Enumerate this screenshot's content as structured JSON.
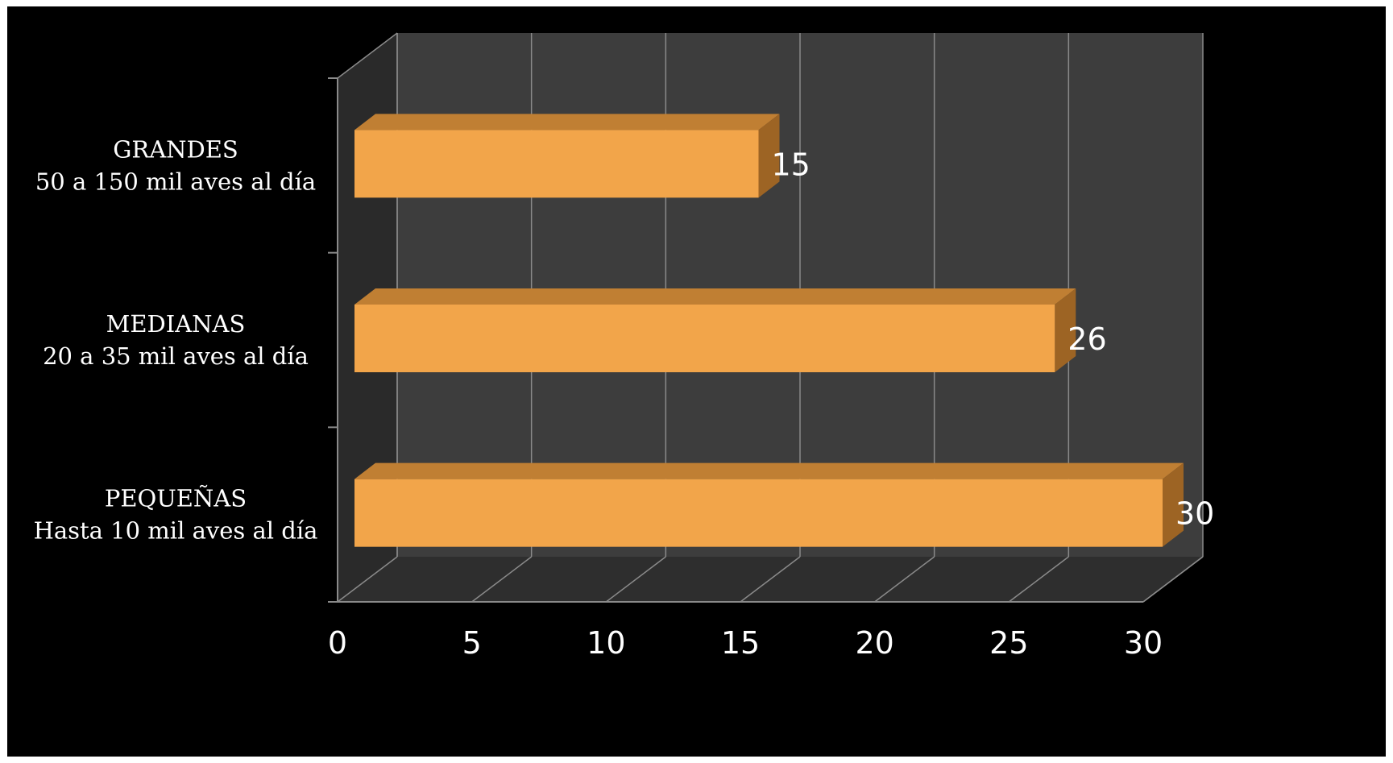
{
  "chart_data": {
    "type": "bar",
    "orientation": "horizontal",
    "style": "3d",
    "categories": [
      [
        "GRANDES",
        "50 a 150 mil aves al día"
      ],
      [
        "MEDIANAS",
        "20 a 35 mil aves al día"
      ],
      [
        "PEQUEÑAS",
        "Hasta 10 mil aves al día"
      ]
    ],
    "values": [
      15,
      26,
      30
    ],
    "data_labels": [
      "15",
      "26",
      "30"
    ],
    "xlim": [
      0,
      30
    ],
    "xticks": [
      "0",
      "5",
      "10",
      "15",
      "20",
      "25",
      "30"
    ],
    "grid": true,
    "legend": "none",
    "colors": {
      "background": "#000000",
      "wall": "#3d3d3d",
      "floor": "#2e2e2e",
      "side_wall": "#2a2a2a",
      "gridline": "#8a8a8a",
      "bar_front": "#f2a54a",
      "bar_top": "#c07f33",
      "bar_side": "#9d6424",
      "text": "#ffffff"
    }
  }
}
